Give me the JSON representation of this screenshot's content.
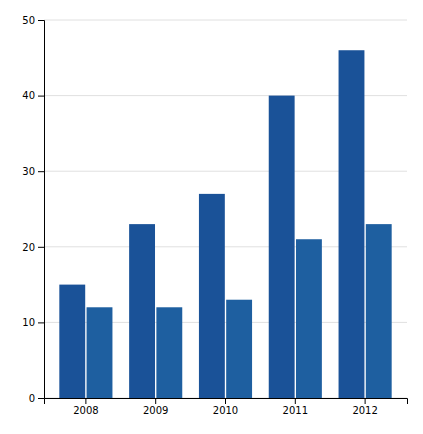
{
  "chart_data": {
    "type": "bar",
    "categories": [
      "2008",
      "2009",
      "2010",
      "2011",
      "2012"
    ],
    "series": [
      {
        "color": "#1a5298",
        "values": [
          15,
          23,
          27,
          40,
          46
        ]
      },
      {
        "color": "#1e5fa0",
        "values": [
          12,
          12,
          13,
          21,
          23
        ]
      }
    ],
    "ylim": [
      0,
      50
    ],
    "yticks": [
      0,
      10,
      20,
      30,
      40,
      50
    ],
    "grid": true
  }
}
